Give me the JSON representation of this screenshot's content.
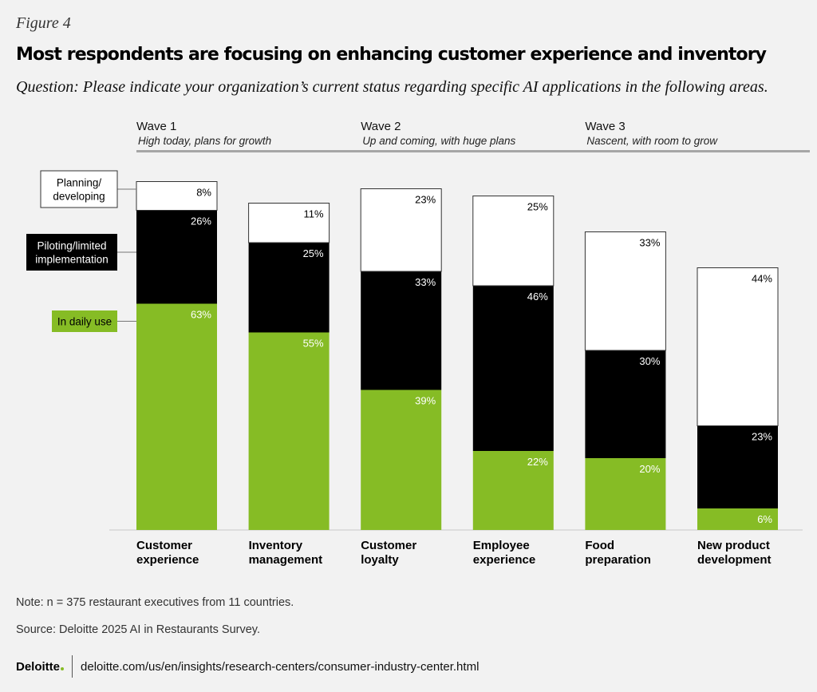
{
  "figure_label": "Figure 4",
  "title": "Most respondents are focusing on enhancing customer experience and inventory",
  "question": "Question: Please indicate your organization’s current status regarding specific AI applications in the following areas.",
  "colors": {
    "daily_use": "#86bc25",
    "piloting": "#000000",
    "planning": "#ffffff",
    "wave_rule": "#a6a6a6",
    "background": "#f2f2f2"
  },
  "chart_data": {
    "type": "bar",
    "stacked": true,
    "categories": [
      [
        "Customer",
        "experience"
      ],
      [
        "Inventory",
        "management"
      ],
      [
        "Customer",
        "loyalty"
      ],
      [
        "Employee",
        "experience"
      ],
      [
        "Food",
        "preparation"
      ],
      [
        "New product",
        "development"
      ]
    ],
    "series": [
      {
        "name": "In daily use",
        "values": [
          63,
          55,
          39,
          22,
          20,
          6
        ],
        "color": "#86bc25",
        "label_color": "#ffffff"
      },
      {
        "name": "Piloting/limited implementation",
        "values": [
          26,
          25,
          33,
          46,
          30,
          23
        ],
        "color": "#000000",
        "label_color": "#ffffff"
      },
      {
        "name": "Planning/ developing",
        "values": [
          8,
          11,
          23,
          25,
          33,
          44
        ],
        "color": "#ffffff",
        "label_color": "#000000"
      }
    ],
    "legend": [
      {
        "lines": [
          "Planning/",
          "developing"
        ],
        "series": 2
      },
      {
        "lines": [
          "Piloting/limited",
          "implementation"
        ],
        "series": 1
      },
      {
        "lines": [
          "In daily use"
        ],
        "series": 0
      }
    ],
    "legend_position": "left",
    "waves": [
      {
        "name": "Wave 1",
        "description": "High today, plans for growth",
        "categories": [
          0,
          1
        ]
      },
      {
        "name": "Wave 2",
        "description": "Up and coming, with huge plans",
        "categories": [
          2,
          3
        ]
      },
      {
        "name": "Wave 3",
        "description": "Nascent, with room to grow",
        "categories": [
          4,
          5
        ]
      }
    ],
    "value_suffix": "%",
    "ylim": [
      0,
      100
    ],
    "grid": false
  },
  "note": "Note: n = 375 restaurant executives from 11 countries.",
  "source": "Source: Deloitte 2025 AI in Restaurants Survey.",
  "footer": {
    "logo_text": "Deloitte",
    "url": "deloitte.com/us/en/insights/research-centers/consumer-industry-center.html"
  }
}
